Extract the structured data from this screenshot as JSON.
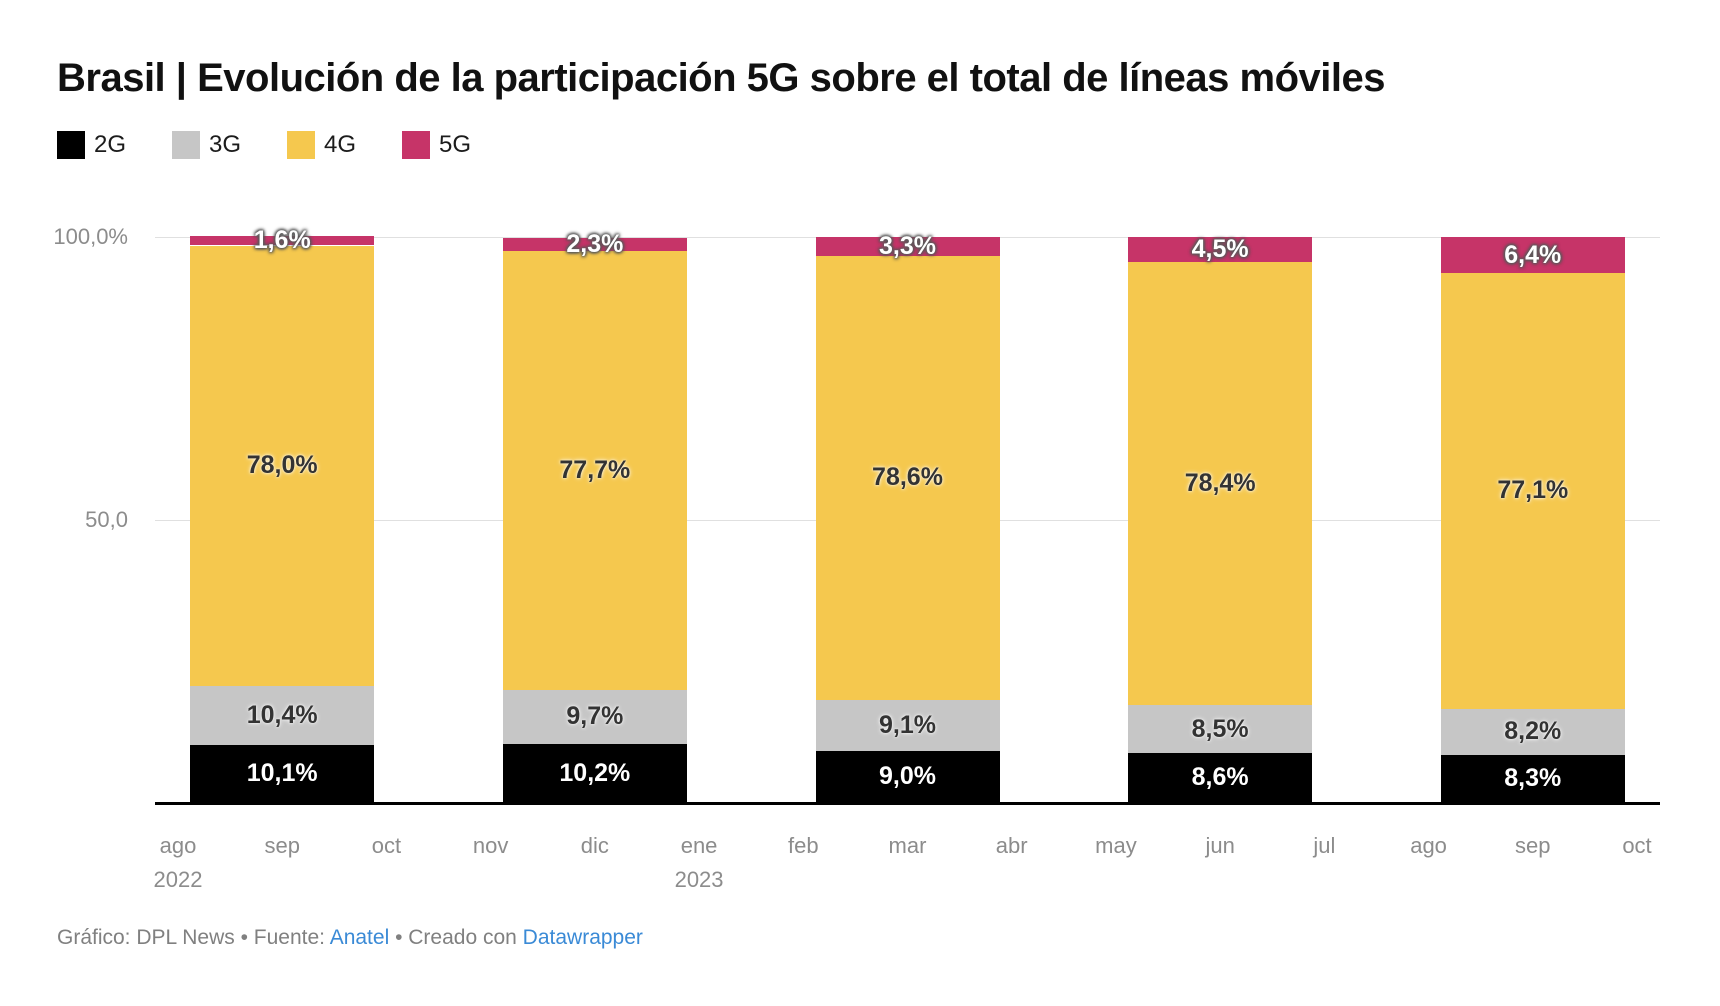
{
  "title": "Brasil | Evolución de la participación 5G sobre el total de líneas móviles",
  "footer": {
    "credit": "Gráfico: DPL News • Fuente: ",
    "source_link": "Anatel",
    "middle": " • Creado con ",
    "tool_link": "Datawrapper"
  },
  "colors": {
    "gridline": "#e0e0e0",
    "axis_text": "#8c8c8c",
    "baseline": "#000000",
    "link_blue": "#3a8ad6"
  },
  "chart_data": {
    "type": "bar",
    "stacked": true,
    "unit": "%",
    "title": "Brasil | Evolución de la participación 5G sobre el total de líneas móviles",
    "categories": [
      "sep 2022",
      "dic 2022",
      "mar 2023",
      "jun 2023",
      "sep 2023"
    ],
    "series": [
      {
        "name": "2G",
        "color": "#000000",
        "values": [
          10.1,
          10.2,
          9.0,
          8.6,
          8.3
        ]
      },
      {
        "name": "3G",
        "color": "#C6C6C6",
        "values": [
          10.4,
          9.7,
          9.1,
          8.5,
          8.2
        ]
      },
      {
        "name": "4G",
        "color": "#F5C84E",
        "values": [
          78.0,
          77.7,
          78.6,
          78.4,
          77.1
        ]
      },
      {
        "name": "5G",
        "color": "#C63468",
        "values": [
          1.6,
          2.3,
          3.3,
          4.5,
          6.4
        ]
      }
    ],
    "ylim": [
      0,
      100
    ],
    "y_ticks": [
      {
        "value": 100,
        "label": "100,0%"
      },
      {
        "value": 50,
        "label": "50,0"
      }
    ],
    "x_months": [
      "ago",
      "sep",
      "oct",
      "nov",
      "dic",
      "ene",
      "feb",
      "mar",
      "abr",
      "may",
      "jun",
      "jul",
      "ago",
      "sep",
      "oct"
    ],
    "x_year_labels": [
      {
        "month_index": 0,
        "label": "2022"
      },
      {
        "month_index": 5,
        "label": "2023"
      }
    ],
    "bar_month_indices": [
      1,
      4,
      7,
      10,
      13
    ],
    "grid": "horizontal",
    "legend_position": "top-left",
    "decimal_separator": ","
  }
}
